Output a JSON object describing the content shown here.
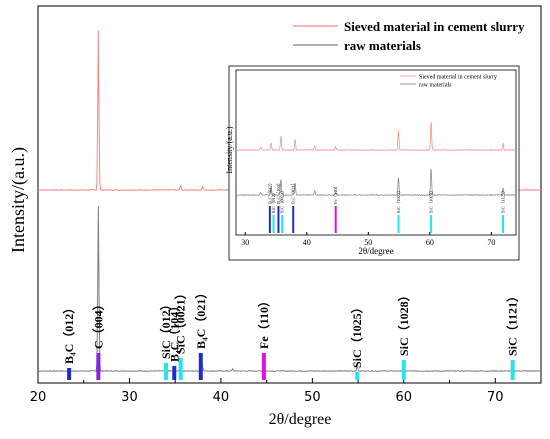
{
  "chart_data": {
    "type": "line",
    "xlabel": "2θ/degree",
    "ylabel": "Intensity/(a.u.)",
    "xlim": [
      20,
      75
    ],
    "xticks": [
      20,
      30,
      40,
      50,
      60,
      70
    ],
    "grid": false,
    "legend_position": "top-right",
    "colors": {
      "sieved": "#f08a8a",
      "raw": "#808080",
      "blue": "#1f2bd0",
      "purple": "#8b22e0",
      "magenta": "#e010e0",
      "cyan": "#22e6ec"
    },
    "series": [
      {
        "name": "Sieved material in cement slurry",
        "color": "#f08a8a",
        "baseline": 190,
        "peaks": [
          [
            26.6,
            160
          ],
          [
            35.6,
            5
          ],
          [
            38.0,
            4
          ],
          [
            50.1,
            2
          ],
          [
            54.9,
            3
          ],
          [
            60.0,
            3
          ],
          [
            71.9,
            2
          ]
        ]
      },
      {
        "name": "raw materials",
        "color": "#808080",
        "baseline": 371,
        "peaks": [
          [
            26.6,
            165
          ],
          [
            35.6,
            5
          ],
          [
            38.0,
            4
          ],
          [
            41.3,
            2
          ],
          [
            54.9,
            5
          ],
          [
            60.0,
            5
          ],
          [
            71.9,
            4
          ]
        ]
      }
    ],
    "reference_lines": [
      {
        "label": "B₄C（012）",
        "x": 23.4,
        "height": 12,
        "color": "#1f2bd0"
      },
      {
        "label": "C（004）",
        "x": 26.6,
        "height": 27,
        "color": "#8b22e0"
      },
      {
        "label": "SiC（012）",
        "x": 34.0,
        "height": 17,
        "color": "#22e6ec"
      },
      {
        "label": "B₄C（104）",
        "x": 34.9,
        "height": 14,
        "color": "#1f2bd0"
      },
      {
        "label": "SiC（0021）",
        "x": 35.6,
        "height": 22,
        "color": "#22e6ec"
      },
      {
        "label": "B₄C（021）",
        "x": 37.8,
        "height": 27,
        "color": "#1f2bd0"
      },
      {
        "label": "Fe（110）",
        "x": 44.7,
        "height": 27,
        "color": "#e010e0"
      },
      {
        "label": "SiC（1025）",
        "x": 54.9,
        "height": 8,
        "color": "#22e6ec"
      },
      {
        "label": "SiC（1028）",
        "x": 60.0,
        "height": 20,
        "color": "#22e6ec"
      },
      {
        "label": "SiC（1121）",
        "x": 71.9,
        "height": 20,
        "color": "#22e6ec"
      }
    ],
    "inset": {
      "type": "line",
      "xlabel": "2θ/degree",
      "ylabel": "Intensity/(a.u.)",
      "xlim": [
        28.5,
        74
      ],
      "xticks": [
        30,
        40,
        50,
        60,
        70
      ],
      "legend": [
        "Sieved material in cement slurry",
        "raw materials"
      ],
      "series": [
        {
          "name": "Sieved material in cement slurry",
          "color": "#f08a8a",
          "peaks": [
            [
              32.5,
              3
            ],
            [
              34.2,
              8
            ],
            [
              35.8,
              16
            ],
            [
              38.1,
              12
            ],
            [
              41.3,
              5
            ],
            [
              44.7,
              4
            ],
            [
              54.9,
              22
            ],
            [
              60.2,
              32
            ],
            [
              71.9,
              7
            ]
          ]
        },
        {
          "name": "raw materials",
          "color": "#808080",
          "peaks": [
            [
              32.5,
              3
            ],
            [
              34.2,
              10
            ],
            [
              35.8,
              18
            ],
            [
              38.1,
              14
            ],
            [
              41.3,
              5
            ],
            [
              44.7,
              3
            ],
            [
              54.9,
              20
            ],
            [
              60.2,
              30
            ],
            [
              71.9,
              8
            ]
          ]
        }
      ],
      "reference_lines": [
        {
          "label": "B₄C（012）",
          "x": 34.0,
          "color": "#1f2bd0"
        },
        {
          "label": "SiC（012）",
          "x": 34.6,
          "color": "#22e6ec"
        },
        {
          "label": "B₄C（104）",
          "x": 35.4,
          "color": "#1f2bd0"
        },
        {
          "label": "SiC（0021）",
          "x": 36.0,
          "color": "#22e6ec"
        },
        {
          "label": "B₄C（021）",
          "x": 37.8,
          "color": "#1f2bd0"
        },
        {
          "label": "Fe（110）",
          "x": 44.7,
          "color": "#e010e0"
        },
        {
          "label": "SiC（1025）",
          "x": 54.9,
          "color": "#22e6ec"
        },
        {
          "label": "SiC（1028）",
          "x": 60.2,
          "color": "#22e6ec"
        },
        {
          "label": "SiC（1121）",
          "x": 71.9,
          "color": "#22e6ec"
        }
      ]
    }
  }
}
